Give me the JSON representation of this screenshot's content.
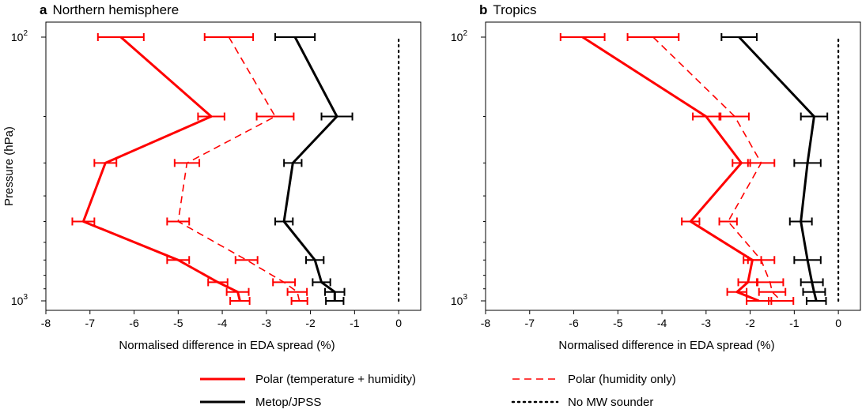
{
  "chart_data": [
    {
      "type": "line",
      "panel_letter": "a",
      "title": "Northern hemisphere",
      "xlabel": "Normalised difference in EDA spread (%)",
      "ylabel": "Pressure (hPa)",
      "xlim": [
        -8,
        0.5
      ],
      "ylim": [
        1000,
        100
      ],
      "y_scale": "log",
      "x_ticks": [
        -8,
        -7,
        -6,
        -5,
        -4,
        -3,
        -2,
        -1,
        0
      ],
      "y_ticks": [
        {
          "value": 100,
          "label": "10",
          "exp": "2"
        },
        {
          "value": 1000,
          "label": "10",
          "exp": "3"
        }
      ],
      "series": [
        {
          "name": "Polar (temperature + humidity)",
          "color": "#ff0000",
          "style": "solid",
          "points": [
            {
              "x": -6.3,
              "y": 100,
              "err": 0.52
            },
            {
              "x": -4.25,
              "y": 200,
              "err": 0.3
            },
            {
              "x": -6.65,
              "y": 300,
              "err": 0.25
            },
            {
              "x": -7.15,
              "y": 500,
              "err": 0.25
            },
            {
              "x": -5.0,
              "y": 700,
              "err": 0.25
            },
            {
              "x": -4.1,
              "y": 850,
              "err": 0.22
            },
            {
              "x": -3.65,
              "y": 925,
              "err": 0.25
            },
            {
              "x": -3.6,
              "y": 1000,
              "err": 0.22
            }
          ]
        },
        {
          "name": "Polar (humidity only)",
          "color": "#ff0000",
          "style": "dashed",
          "points": [
            {
              "x": -3.85,
              "y": 100,
              "err": 0.55
            },
            {
              "x": -2.8,
              "y": 200,
              "err": 0.42
            },
            {
              "x": -4.8,
              "y": 300,
              "err": 0.28
            },
            {
              "x": -5.0,
              "y": 500,
              "err": 0.25
            },
            {
              "x": -3.45,
              "y": 700,
              "err": 0.25
            },
            {
              "x": -2.6,
              "y": 850,
              "err": 0.25
            },
            {
              "x": -2.3,
              "y": 925,
              "err": 0.22
            },
            {
              "x": -2.25,
              "y": 1000,
              "err": 0.18
            }
          ]
        },
        {
          "name": "Metop/JPSS",
          "color": "#000000",
          "style": "solid",
          "points": [
            {
              "x": -2.35,
              "y": 100,
              "err": 0.45
            },
            {
              "x": -1.4,
              "y": 200,
              "err": 0.35
            },
            {
              "x": -2.4,
              "y": 300,
              "err": 0.2
            },
            {
              "x": -2.6,
              "y": 500,
              "err": 0.2
            },
            {
              "x": -1.9,
              "y": 700,
              "err": 0.2
            },
            {
              "x": -1.75,
              "y": 850,
              "err": 0.2
            },
            {
              "x": -1.45,
              "y": 925,
              "err": 0.22
            },
            {
              "x": -1.45,
              "y": 1000,
              "err": 0.2
            }
          ]
        },
        {
          "name": "No MW sounder",
          "color": "#000000",
          "style": "dotted",
          "points": [
            {
              "x": 0,
              "y": 1000
            },
            {
              "x": 0,
              "y": 100
            }
          ]
        }
      ]
    },
    {
      "type": "line",
      "panel_letter": "b",
      "title": "Tropics",
      "xlabel": "Normalised difference in EDA spread (%)",
      "ylabel": "",
      "xlim": [
        -8,
        0.5
      ],
      "ylim": [
        1000,
        100
      ],
      "y_scale": "log",
      "x_ticks": [
        -8,
        -7,
        -6,
        -5,
        -4,
        -3,
        -2,
        -1,
        0
      ],
      "y_ticks": [
        {
          "value": 100,
          "label": "10",
          "exp": "2"
        },
        {
          "value": 1000,
          "label": "10",
          "exp": "3"
        }
      ],
      "series": [
        {
          "name": "Polar (temperature + humidity)",
          "color": "#ff0000",
          "style": "solid",
          "points": [
            {
              "x": -5.8,
              "y": 100,
              "err": 0.5
            },
            {
              "x": -3.0,
              "y": 200,
              "err": 0.3
            },
            {
              "x": -2.2,
              "y": 300,
              "err": 0.2
            },
            {
              "x": -3.35,
              "y": 500,
              "err": 0.2
            },
            {
              "x": -1.95,
              "y": 700,
              "err": 0.2
            },
            {
              "x": -2.05,
              "y": 850,
              "err": 0.22
            },
            {
              "x": -2.3,
              "y": 925,
              "err": 0.22
            },
            {
              "x": -1.8,
              "y": 1000,
              "err": 0.28
            }
          ]
        },
        {
          "name": "Polar (humidity only)",
          "color": "#ff0000",
          "style": "dashed",
          "points": [
            {
              "x": -4.2,
              "y": 100,
              "err": 0.58
            },
            {
              "x": -2.35,
              "y": 200,
              "err": 0.32
            },
            {
              "x": -1.75,
              "y": 300,
              "err": 0.3
            },
            {
              "x": -2.5,
              "y": 500,
              "err": 0.2
            },
            {
              "x": -1.75,
              "y": 700,
              "err": 0.3
            },
            {
              "x": -1.55,
              "y": 850,
              "err": 0.3
            },
            {
              "x": -1.5,
              "y": 925,
              "err": 0.3
            },
            {
              "x": -1.3,
              "y": 1000,
              "err": 0.28
            }
          ]
        },
        {
          "name": "Metop/JPSS",
          "color": "#000000",
          "style": "solid",
          "points": [
            {
              "x": -2.25,
              "y": 100,
              "err": 0.4
            },
            {
              "x": -0.55,
              "y": 200,
              "err": 0.3
            },
            {
              "x": -0.7,
              "y": 300,
              "err": 0.3
            },
            {
              "x": -0.85,
              "y": 500,
              "err": 0.25
            },
            {
              "x": -0.7,
              "y": 700,
              "err": 0.3
            },
            {
              "x": -0.6,
              "y": 850,
              "err": 0.25
            },
            {
              "x": -0.55,
              "y": 925,
              "err": 0.25
            },
            {
              "x": -0.5,
              "y": 1000,
              "err": 0.22
            }
          ]
        },
        {
          "name": "No MW sounder",
          "color": "#000000",
          "style": "dotted",
          "points": [
            {
              "x": 0,
              "y": 1000
            },
            {
              "x": 0,
              "y": 100
            }
          ]
        }
      ]
    }
  ],
  "legend": {
    "placement": "bottom",
    "items": [
      {
        "label": "Polar (temperature + humidity)",
        "color": "#ff0000",
        "style": "solid"
      },
      {
        "label": "Polar (humidity only)",
        "color": "#ff0000",
        "style": "dashed"
      },
      {
        "label": "Metop/JPSS",
        "color": "#000000",
        "style": "solid"
      },
      {
        "label": "No MW sounder",
        "color": "#000000",
        "style": "dotted"
      }
    ]
  }
}
